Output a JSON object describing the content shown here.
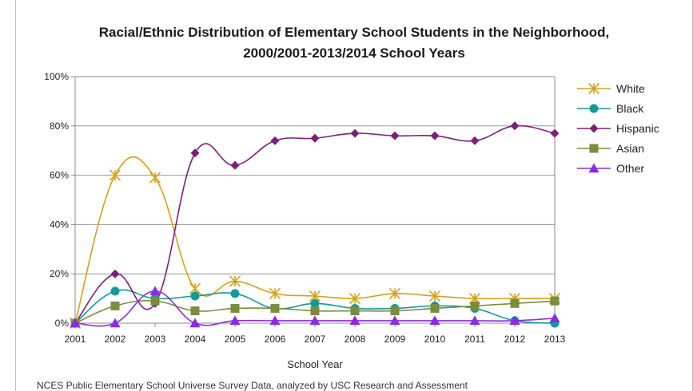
{
  "chart_data": {
    "type": "line",
    "title_line1": "Racial/Ethnic Distribution of Elementary School Students in the Neighborhood,",
    "title_line2": "2000/2001-2013/2014 School Years",
    "xlabel": "School Year",
    "ylabel": "",
    "categories": [
      "2001",
      "2002",
      "2003",
      "2004",
      "2005",
      "2006",
      "2007",
      "2008",
      "2009",
      "2010",
      "2011",
      "2012",
      "2013"
    ],
    "ylim": [
      0,
      100
    ],
    "yticks": [
      "0%",
      "20%",
      "40%",
      "60%",
      "80%",
      "100%"
    ],
    "ytick_values": [
      0,
      20,
      40,
      60,
      80,
      100
    ],
    "grid": true,
    "legend_position": "right",
    "series": [
      {
        "name": "White",
        "color": "#D4A017",
        "marker": "asterisk",
        "values": [
          0,
          60,
          59,
          14,
          17,
          12,
          11,
          10,
          12,
          11,
          10,
          10,
          10
        ]
      },
      {
        "name": "Black",
        "color": "#139999",
        "marker": "circle",
        "values": [
          0,
          13,
          10,
          11,
          12,
          6,
          8,
          6,
          6,
          7,
          6,
          1,
          0
        ]
      },
      {
        "name": "Hispanic",
        "color": "#7B1F7B",
        "marker": "diamond",
        "values": [
          0,
          20,
          8,
          69,
          64,
          74,
          75,
          77,
          76,
          76,
          74,
          80,
          77
        ]
      },
      {
        "name": "Asian",
        "color": "#7A8C3E",
        "marker": "square",
        "values": [
          0,
          7,
          9,
          5,
          6,
          6,
          5,
          5,
          5,
          6,
          7,
          8,
          9
        ]
      },
      {
        "name": "Other",
        "color": "#8A2BE2",
        "marker": "triangle",
        "values": [
          0,
          0,
          13,
          0,
          1,
          1,
          1,
          1,
          1,
          1,
          1,
          1,
          2
        ]
      }
    ]
  },
  "source_note": "NCES Public Elementary School Universe Survey Data, analyzed by USC Research and Assessment"
}
